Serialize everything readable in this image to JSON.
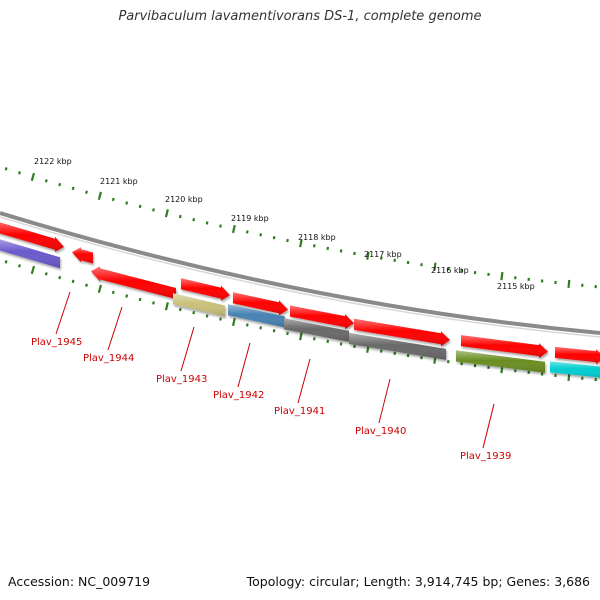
{
  "title": "Parvibaculum lavamentivorans DS-1, complete genome",
  "footer": {
    "accession": "Accession: NC_009719",
    "summary": "Topology: circular; Length: 3,914,745 bp; Genes: 3,686"
  },
  "ruler": {
    "tick_color": "#2e7d1e",
    "labels": [
      "2122 kbp",
      "2121 kbp",
      "2120 kbp",
      "2119 kbp",
      "2118 kbp",
      "2117 kbp",
      "2116 kbp",
      "2115 kbp"
    ]
  },
  "genes": [
    {
      "name": "",
      "color": "#ff0000",
      "strand": "+"
    },
    {
      "name": "",
      "color": "#6a5acd",
      "strand": "-"
    },
    {
      "name": "",
      "color": "#ff0000",
      "strand": "-"
    },
    {
      "name": "",
      "color": "#ff0000",
      "strand": "-"
    },
    {
      "name": "Plav_1945",
      "color": "#ff0000",
      "strand": "+"
    },
    {
      "name": "Plav_1944",
      "color": "#ff0000",
      "strand": "+"
    },
    {
      "name": "Plav_1943",
      "color": "#c8c07a",
      "strand": "-"
    },
    {
      "name": "Plav_1942",
      "color": "#4682b4",
      "strand": "-"
    },
    {
      "name": "Plav_1941",
      "color": "#ff0000",
      "strand": "+"
    },
    {
      "name": "Plav_1941",
      "color": "#696969",
      "strand": "-"
    },
    {
      "name": "Plav_1940",
      "color": "#ff0000",
      "strand": "+"
    },
    {
      "name": "Plav_1940",
      "color": "#696969",
      "strand": "-"
    },
    {
      "name": "Plav_1939",
      "color": "#ff0000",
      "strand": "+"
    },
    {
      "name": "Plav_1939",
      "color": "#6b8e23",
      "strand": "-"
    },
    {
      "name": "",
      "color": "#ff0000",
      "strand": "+"
    },
    {
      "name": "",
      "color": "#00ced1",
      "strand": "-"
    }
  ],
  "gene_labels": [
    "Plav_1945",
    "Plav_1944",
    "Plav_1943",
    "Plav_1942",
    "Plav_1941",
    "Plav_1940",
    "Plav_1939"
  ],
  "label_color": "#cc0000"
}
